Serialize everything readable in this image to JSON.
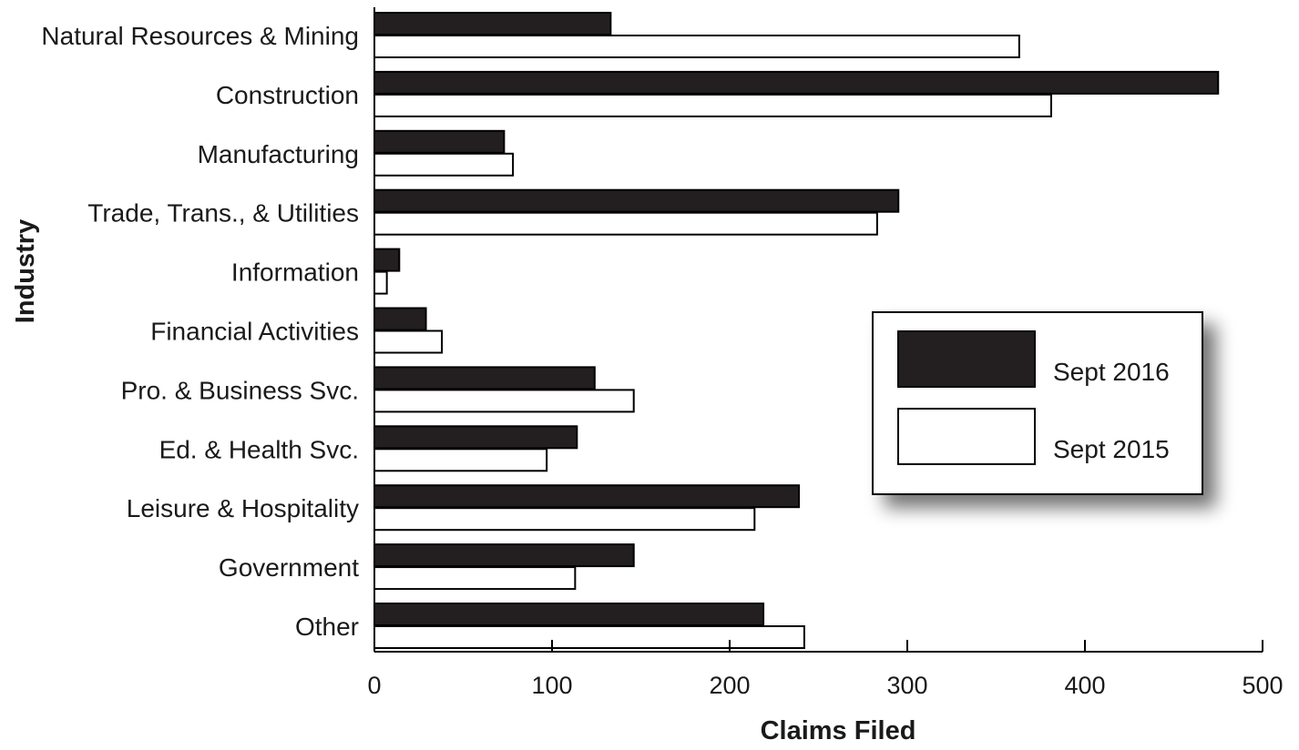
{
  "chart_data": {
    "type": "bar",
    "orientation": "horizontal",
    "title": "",
    "xlabel": "Claims Filed",
    "ylabel": "Industry",
    "xlim": [
      0,
      500
    ],
    "xticks": [
      0,
      100,
      200,
      300,
      400,
      500
    ],
    "grid": false,
    "legend_position": "right",
    "categories": [
      "Natural Resources & Mining",
      "Construction",
      "Manufacturing",
      "Trade, Trans., & Utilities",
      "Information",
      "Financial Activities",
      "Pro. & Business Svc.",
      "Ed. & Health Svc.",
      "Leisure & Hospitality",
      "Government",
      "Other"
    ],
    "series": [
      {
        "name": "Sept 2016",
        "color": "#231f20",
        "values": [
          133,
          475,
          73,
          295,
          14,
          29,
          124,
          114,
          239,
          146,
          219
        ]
      },
      {
        "name": "Sept 2015",
        "color": "#ffffff",
        "values": [
          363,
          381,
          78,
          283,
          7,
          38,
          146,
          97,
          214,
          113,
          242
        ]
      }
    ]
  }
}
